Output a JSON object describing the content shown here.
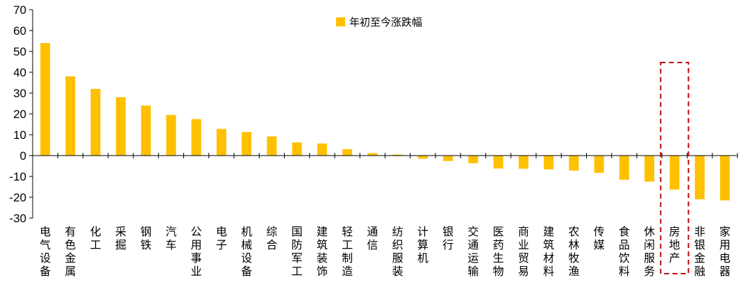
{
  "chart_data": {
    "type": "bar",
    "title": "",
    "xlabel": "",
    "ylabel": "",
    "ylim": [
      -30,
      70
    ],
    "yticks": [
      70,
      60,
      50,
      40,
      30,
      20,
      10,
      0,
      -10,
      -20,
      -30
    ],
    "grid": false,
    "legend_position": "top",
    "bar_color": "#FFC000",
    "highlight_color": "#C00000",
    "highlight_category": "房地产",
    "categories": [
      "电气设备",
      "有色金属",
      "化工",
      "采掘",
      "钢铁",
      "汽车",
      "公用事业",
      "电子",
      "机械设备",
      "综合",
      "国防军工",
      "建筑装饰",
      "轻工制造",
      "通信",
      "纺织服装",
      "计算机",
      "银行",
      "交通运输",
      "医药生物",
      "商业贸易",
      "建筑材料",
      "农林牧渔",
      "传媒",
      "食品饮料",
      "休闲服务",
      "房地产",
      "非银金融",
      "家用电器"
    ],
    "series": [
      {
        "name": "年初至今涨跌幅",
        "values": [
          54,
          38,
          32,
          28,
          24,
          19.5,
          17.5,
          12.8,
          11.3,
          9.2,
          6.3,
          5.8,
          3.1,
          1.2,
          0.5,
          -1.5,
          -2.6,
          -3.7,
          -6.2,
          -6.3,
          -6.6,
          -7.2,
          -8.3,
          -11.6,
          -12.5,
          -16.3,
          -21,
          -21.5
        ]
      }
    ]
  }
}
